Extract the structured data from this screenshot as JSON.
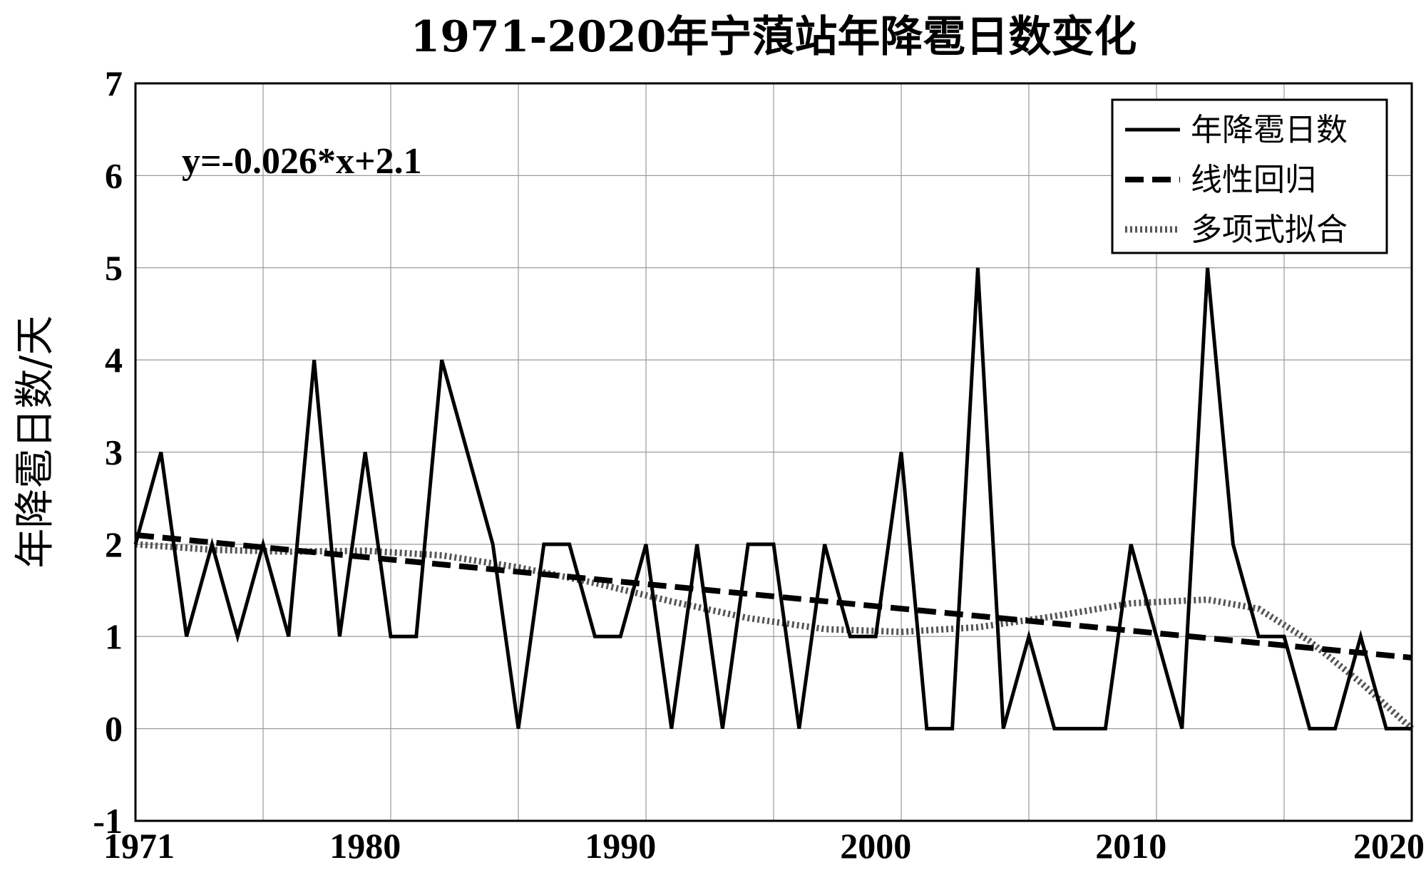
{
  "chart_data": {
    "type": "line",
    "title": "1971-2020年宁蒗站年降雹日数变化",
    "ylabel": "年降雹日数/天",
    "xlabel": "",
    "xlim": [
      1971,
      2021
    ],
    "ylim": [
      -1,
      7
    ],
    "x_ticks": [
      1971,
      1980,
      1990,
      2000,
      2010,
      2020
    ],
    "y_ticks": [
      -1,
      0,
      1,
      2,
      3,
      4,
      5,
      6,
      7
    ],
    "grid": true,
    "legend_position": "top-right",
    "annotation": "y=-0.026*x+2.1",
    "series": [
      {
        "name": "年降雹日数",
        "style": "solid",
        "color": "#000000",
        "x": [
          1971,
          1972,
          1973,
          1974,
          1975,
          1976,
          1977,
          1978,
          1979,
          1980,
          1981,
          1982,
          1983,
          1984,
          1985,
          1986,
          1987,
          1988,
          1989,
          1990,
          1991,
          1992,
          1993,
          1994,
          1995,
          1996,
          1997,
          1998,
          1999,
          2000,
          2001,
          2002,
          2003,
          2004,
          2005,
          2006,
          2007,
          2008,
          2009,
          2010,
          2011,
          2012,
          2013,
          2014,
          2015,
          2016,
          2017,
          2018,
          2019,
          2020,
          2021
        ],
        "values": [
          2,
          3,
          1,
          2,
          1,
          2,
          1,
          4,
          1,
          3,
          1,
          1,
          4,
          3,
          2,
          0,
          2,
          2,
          1,
          1,
          2,
          0,
          2,
          0,
          2,
          2,
          0,
          2,
          1,
          1,
          3,
          0,
          0,
          5,
          0,
          1,
          0,
          0,
          0,
          2,
          1,
          0,
          5,
          2,
          1,
          1,
          0,
          0,
          1,
          0,
          0
        ]
      },
      {
        "name": "线性回归",
        "style": "dashed",
        "color": "#000000",
        "x": [
          1971,
          2021
        ],
        "values": [
          2.1,
          0.77
        ]
      },
      {
        "name": "多项式拟合",
        "style": "dotted",
        "color": "#555555",
        "x": [
          1971,
          1974,
          1977,
          1980,
          1983,
          1986,
          1989,
          1992,
          1995,
          1998,
          2001,
          2004,
          2007,
          2010,
          2013,
          2015,
          2017,
          2019,
          2021
        ],
        "values": [
          2.0,
          1.94,
          1.92,
          1.93,
          1.88,
          1.75,
          1.58,
          1.38,
          1.2,
          1.08,
          1.05,
          1.1,
          1.22,
          1.36,
          1.4,
          1.3,
          0.95,
          0.5,
          0.0
        ]
      }
    ]
  }
}
